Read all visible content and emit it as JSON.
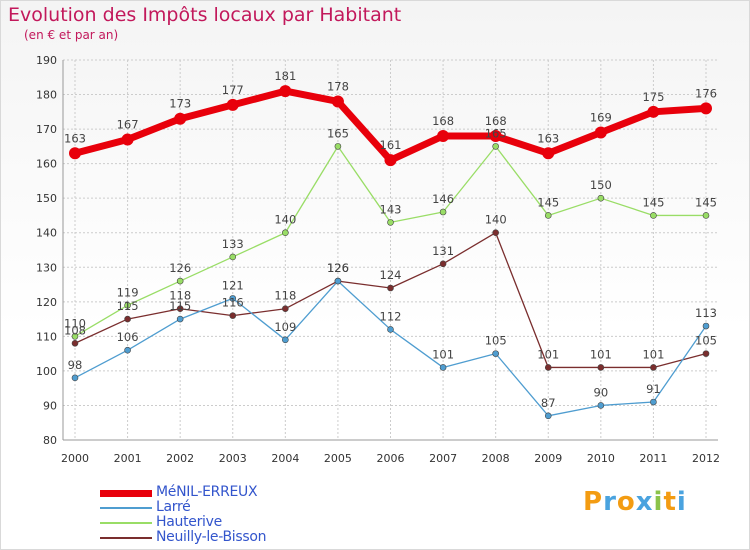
{
  "title": "Evolution des Impôts locaux par Habitant",
  "subtitle": "(en € et par an)",
  "brand": {
    "letters": [
      "P",
      "r",
      "o",
      "x",
      "i",
      "t",
      "i"
    ],
    "colors": [
      "#f39c12",
      "#4aa3df",
      "#f39c12",
      "#4aa3df",
      "#8bc34a",
      "#f39c12",
      "#4aa3df"
    ]
  },
  "chart_data": {
    "type": "line",
    "title": "Evolution des Impôts locaux par Habitant",
    "ylabel": "(en € et par an)",
    "xlabel": "",
    "x": [
      2000,
      2001,
      2002,
      2003,
      2004,
      2005,
      2006,
      2007,
      2008,
      2009,
      2010,
      2011,
      2012
    ],
    "ylim": [
      80,
      190
    ],
    "yticks": [
      80,
      90,
      100,
      110,
      120,
      130,
      140,
      150,
      160,
      170,
      180,
      190
    ],
    "grid": true,
    "legend_position": "bottom-left",
    "series": [
      {
        "name": "MéNIL-ERREUX",
        "color": "#e8000b",
        "width": 7,
        "marker": 6,
        "values": [
          163,
          167,
          173,
          177,
          181,
          178,
          161,
          168,
          168,
          163,
          169,
          175,
          176
        ]
      },
      {
        "name": "Larré",
        "color": "#4f9dd0",
        "width": 1.3,
        "marker": 3,
        "values": [
          98,
          106,
          115,
          121,
          109,
          126,
          112,
          101,
          105,
          87,
          90,
          91,
          113
        ]
      },
      {
        "name": "Hauterive",
        "color": "#99dd66",
        "width": 1.3,
        "marker": 3,
        "values": [
          110,
          119,
          126,
          133,
          140,
          165,
          143,
          146,
          165,
          145,
          150,
          145,
          145
        ]
      },
      {
        "name": "Neuilly-le-Bisson",
        "color": "#7a2e2e",
        "width": 1.3,
        "marker": 3,
        "values": [
          108,
          115,
          118,
          116,
          118,
          126,
          124,
          131,
          140,
          101,
          101,
          101,
          105
        ]
      }
    ]
  }
}
